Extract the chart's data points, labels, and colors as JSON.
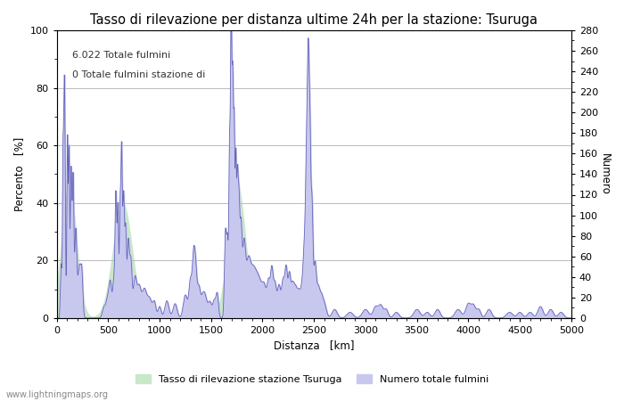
{
  "title": "Tasso di rilevazione per distanza ultime 24h per la stazione: Tsuruga",
  "xlabel": "Distanza   [km]",
  "ylabel_left": "Percento   [%]",
  "ylabel_right": "Numero",
  "xlim": [
    0,
    5000
  ],
  "ylim_left": [
    0,
    100
  ],
  "ylim_right": [
    0,
    280
  ],
  "yticks_left": [
    0,
    20,
    40,
    60,
    80,
    100
  ],
  "yticks_right": [
    0,
    20,
    40,
    60,
    80,
    100,
    120,
    140,
    160,
    180,
    200,
    220,
    240,
    260,
    280
  ],
  "xticks": [
    0,
    500,
    1000,
    1500,
    2000,
    2500,
    3000,
    3500,
    4000,
    4500,
    5000
  ],
  "annotation_line1": "6.022 Totale fulmini",
  "annotation_line2": "0 Totale fulmini stazione di",
  "legend_label1": "Tasso di rilevazione stazione Tsuruga",
  "legend_label2": "Numero totale fulmini",
  "watermark": "www.lightningmaps.org",
  "fill_color_green": "#c8e8c8",
  "fill_color_blue": "#c8c8ee",
  "line_color": "#6666bb",
  "bg_color": "#ffffff",
  "grid_color": "#bbbbbb",
  "title_fontsize": 10.5,
  "axis_fontsize": 8.5,
  "tick_fontsize": 8,
  "annotation_fontsize": 8,
  "watermark_fontsize": 7
}
